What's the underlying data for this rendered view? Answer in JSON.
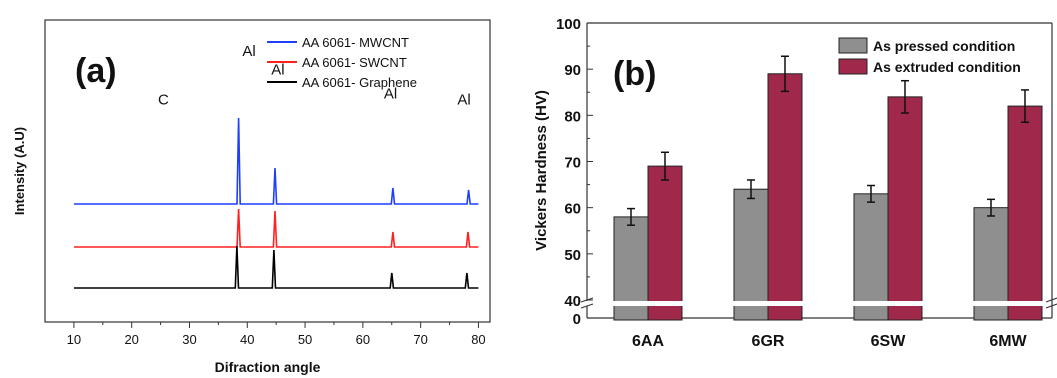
{
  "chart_data": [
    {
      "type": "line",
      "panel_label": "(a)",
      "title": "",
      "xlabel": "Difraction angle",
      "ylabel": "Intensity (A.U)",
      "xlim": [
        5,
        82
      ],
      "xticks": [
        "10",
        "20",
        "30",
        "40",
        "50",
        "60",
        "70",
        "80"
      ],
      "grid": false,
      "legend_position": "top-right",
      "series": [
        {
          "name": "AA 6061- MWCNT",
          "color": "#1f3fff",
          "peaks": [
            {
              "x": 38.5,
              "h": 0.86
            },
            {
              "x": 44.8,
              "h": 0.36
            },
            {
              "x": 65.2,
              "h": 0.16
            },
            {
              "x": 78.3,
              "h": 0.14
            }
          ]
        },
        {
          "name": "AA 6061- SWCNT",
          "color": "#ff2020",
          "peaks": [
            {
              "x": 38.5,
              "h": 0.38
            },
            {
              "x": 44.8,
              "h": 0.36
            },
            {
              "x": 65.2,
              "h": 0.15
            },
            {
              "x": 78.2,
              "h": 0.15
            }
          ]
        },
        {
          "name": "AA 6061- Graphene",
          "color": "#000000",
          "peaks": [
            {
              "x": 38.2,
              "h": 0.42
            },
            {
              "x": 44.6,
              "h": 0.38
            },
            {
              "x": 65.0,
              "h": 0.15
            },
            {
              "x": 78.0,
              "h": 0.15
            }
          ]
        }
      ],
      "annotations": [
        {
          "text": "C",
          "x": 25.5,
          "level": 0.72
        },
        {
          "text": "Al",
          "x": 40.3,
          "level": 0.88
        },
        {
          "text": "Al",
          "x": 45.3,
          "level": 0.82
        },
        {
          "text": "Al",
          "x": 64.8,
          "level": 0.74
        },
        {
          "text": "Al",
          "x": 77.5,
          "level": 0.72
        }
      ]
    },
    {
      "type": "bar",
      "panel_label": "(b)",
      "title": "",
      "xlabel": "",
      "ylabel": "Vickers Hardness (HV)",
      "categories": [
        "6AA",
        "6GR",
        "6SW",
        "6MW"
      ],
      "ylim": [
        40,
        100
      ],
      "axis_break": {
        "below": 40,
        "shown_zero_tick": "0"
      },
      "yticks": [
        "0",
        "40",
        "50",
        "60",
        "70",
        "80",
        "90",
        "100"
      ],
      "grid": false,
      "legend_position": "top-right",
      "series": [
        {
          "name": "As pressed condition",
          "color": "#8f8f8f",
          "values": [
            58,
            64,
            63,
            60
          ],
          "errors": [
            1.8,
            2.0,
            1.8,
            1.8
          ]
        },
        {
          "name": "As extruded condition",
          "color": "#a0294b",
          "values": [
            69,
            89,
            84,
            82
          ],
          "errors": [
            3.0,
            3.8,
            3.5,
            3.5
          ]
        }
      ]
    }
  ]
}
